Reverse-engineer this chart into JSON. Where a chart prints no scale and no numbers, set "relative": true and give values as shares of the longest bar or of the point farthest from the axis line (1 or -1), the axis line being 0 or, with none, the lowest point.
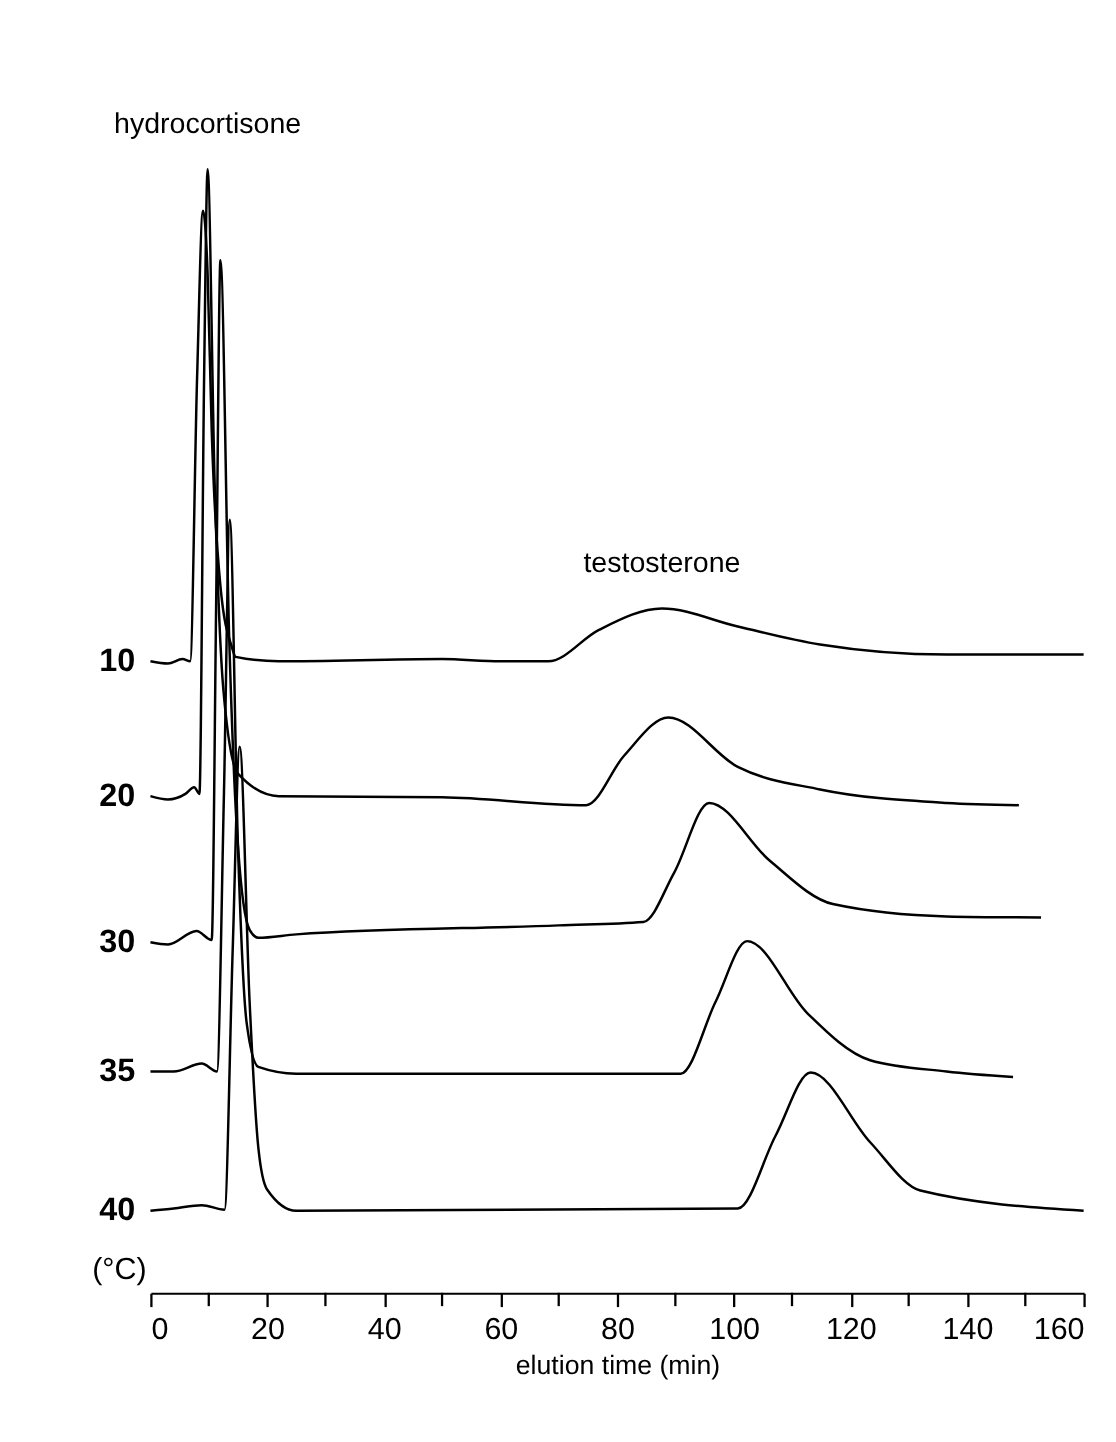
{
  "chart_data": {
    "type": "line",
    "relative": true,
    "xlabel": "elution time (min)",
    "ylabel": "(°C)",
    "xlim": [
      0,
      160
    ],
    "xticks": [
      0,
      {
        "value": 10,
        "label": null
      },
      20,
      {
        "value": 30,
        "label": null
      },
      40,
      {
        "value": 50,
        "label": null
      },
      60,
      {
        "value": 70,
        "label": null
      },
      80,
      {
        "value": 90,
        "label": null
      },
      100,
      {
        "value": 110,
        "label": null
      },
      120,
      {
        "value": 130,
        "label": null
      },
      140,
      {
        "value": 150,
        "label": null
      },
      160
    ],
    "grid": false,
    "legend": false,
    "marker": "none",
    "line_style": "solid",
    "annotations": [
      {
        "text": "hydrocortisone",
        "x": 9.8,
        "y": 1.0
      },
      {
        "text": "testosterone",
        "x": 87.7,
        "y": 0.609
      }
    ],
    "series": [
      {
        "name": "10",
        "color": "#000000",
        "x": [
          0,
          3,
          5.5,
          6.8,
          8.0,
          9.0,
          9.8,
          10.5,
          12,
          14,
          14.6,
          22,
          50,
          60,
          68.2,
          76.9,
          87.7,
          100.7,
          114.8,
          136.5,
          160
        ],
        "values": [
          0.562,
          0.56,
          0.564,
          0.562,
          0.815,
          0.963,
          0.907,
          0.768,
          0.629,
          0.574,
          0.566,
          0.562,
          0.564,
          0.562,
          0.562,
          0.59,
          0.609,
          0.593,
          0.577,
          0.568,
          0.568
        ]
      },
      {
        "name": "20",
        "color": "#000000",
        "x": [
          0,
          3,
          6,
          7.5,
          8.4,
          9.2,
          9.8,
          11,
          12.5,
          15,
          22,
          50,
          74.7,
          81.2,
          88.8,
          100.7,
          114.8,
          136.5,
          148.9
        ],
        "values": [
          0.442,
          0.439,
          0.444,
          0.45,
          0.444,
          0.815,
          1.0,
          0.722,
          0.537,
          0.462,
          0.442,
          0.441,
          0.434,
          0.478,
          0.512,
          0.468,
          0.448,
          0.436,
          0.434
        ]
      },
      {
        "name": "30",
        "color": "#000000",
        "x": [
          0,
          3,
          7.9,
          10.5,
          11.3,
          12.0,
          13.5,
          15,
          17,
          18.5,
          25,
          70,
          84.5,
          89.8,
          95.8,
          106.1,
          117,
          136.5,
          152.7
        ],
        "values": [
          0.312,
          0.31,
          0.322,
          0.314,
          0.629,
          0.919,
          0.583,
          0.398,
          0.323,
          0.316,
          0.319,
          0.327,
          0.33,
          0.374,
          0.436,
          0.385,
          0.346,
          0.335,
          0.334
        ]
      },
      {
        "name": "35",
        "color": "#000000",
        "x": [
          0,
          4,
          8.8,
          11.4,
          12.6,
          13.6,
          15,
          16.5,
          18.5,
          25,
          90.9,
          96.9,
          102.3,
          112.6,
          123.4,
          136.5,
          147.9
        ],
        "values": [
          0.197,
          0.197,
          0.204,
          0.197,
          0.444,
          0.688,
          0.398,
          0.24,
          0.201,
          0.195,
          0.195,
          0.259,
          0.313,
          0.249,
          0.207,
          0.197,
          0.192
        ]
      },
      {
        "name": "40",
        "color": "#000000",
        "x": [
          0,
          4,
          8.8,
          12.7,
          14.1,
          15.3,
          17,
          18.5,
          20,
          25,
          100.7,
          107.2,
          113.2,
          123.4,
          132,
          160
        ],
        "values": [
          0.073,
          0.075,
          0.078,
          0.074,
          0.305,
          0.486,
          0.259,
          0.129,
          0.092,
          0.073,
          0.075,
          0.14,
          0.196,
          0.134,
          0.091,
          0.073
        ]
      }
    ]
  }
}
